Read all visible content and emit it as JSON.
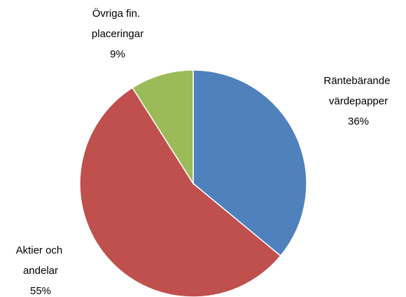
{
  "chart_data": {
    "type": "pie",
    "categories": [
      "Räntebärande värdepapper",
      "Aktier och andelar",
      "Övriga fin. placeringar"
    ],
    "values": [
      36,
      55,
      9
    ],
    "value_labels": [
      "36%",
      "55%",
      "9%"
    ],
    "colors": [
      "#4f81bd",
      "#c0504d",
      "#9bbb59"
    ]
  }
}
